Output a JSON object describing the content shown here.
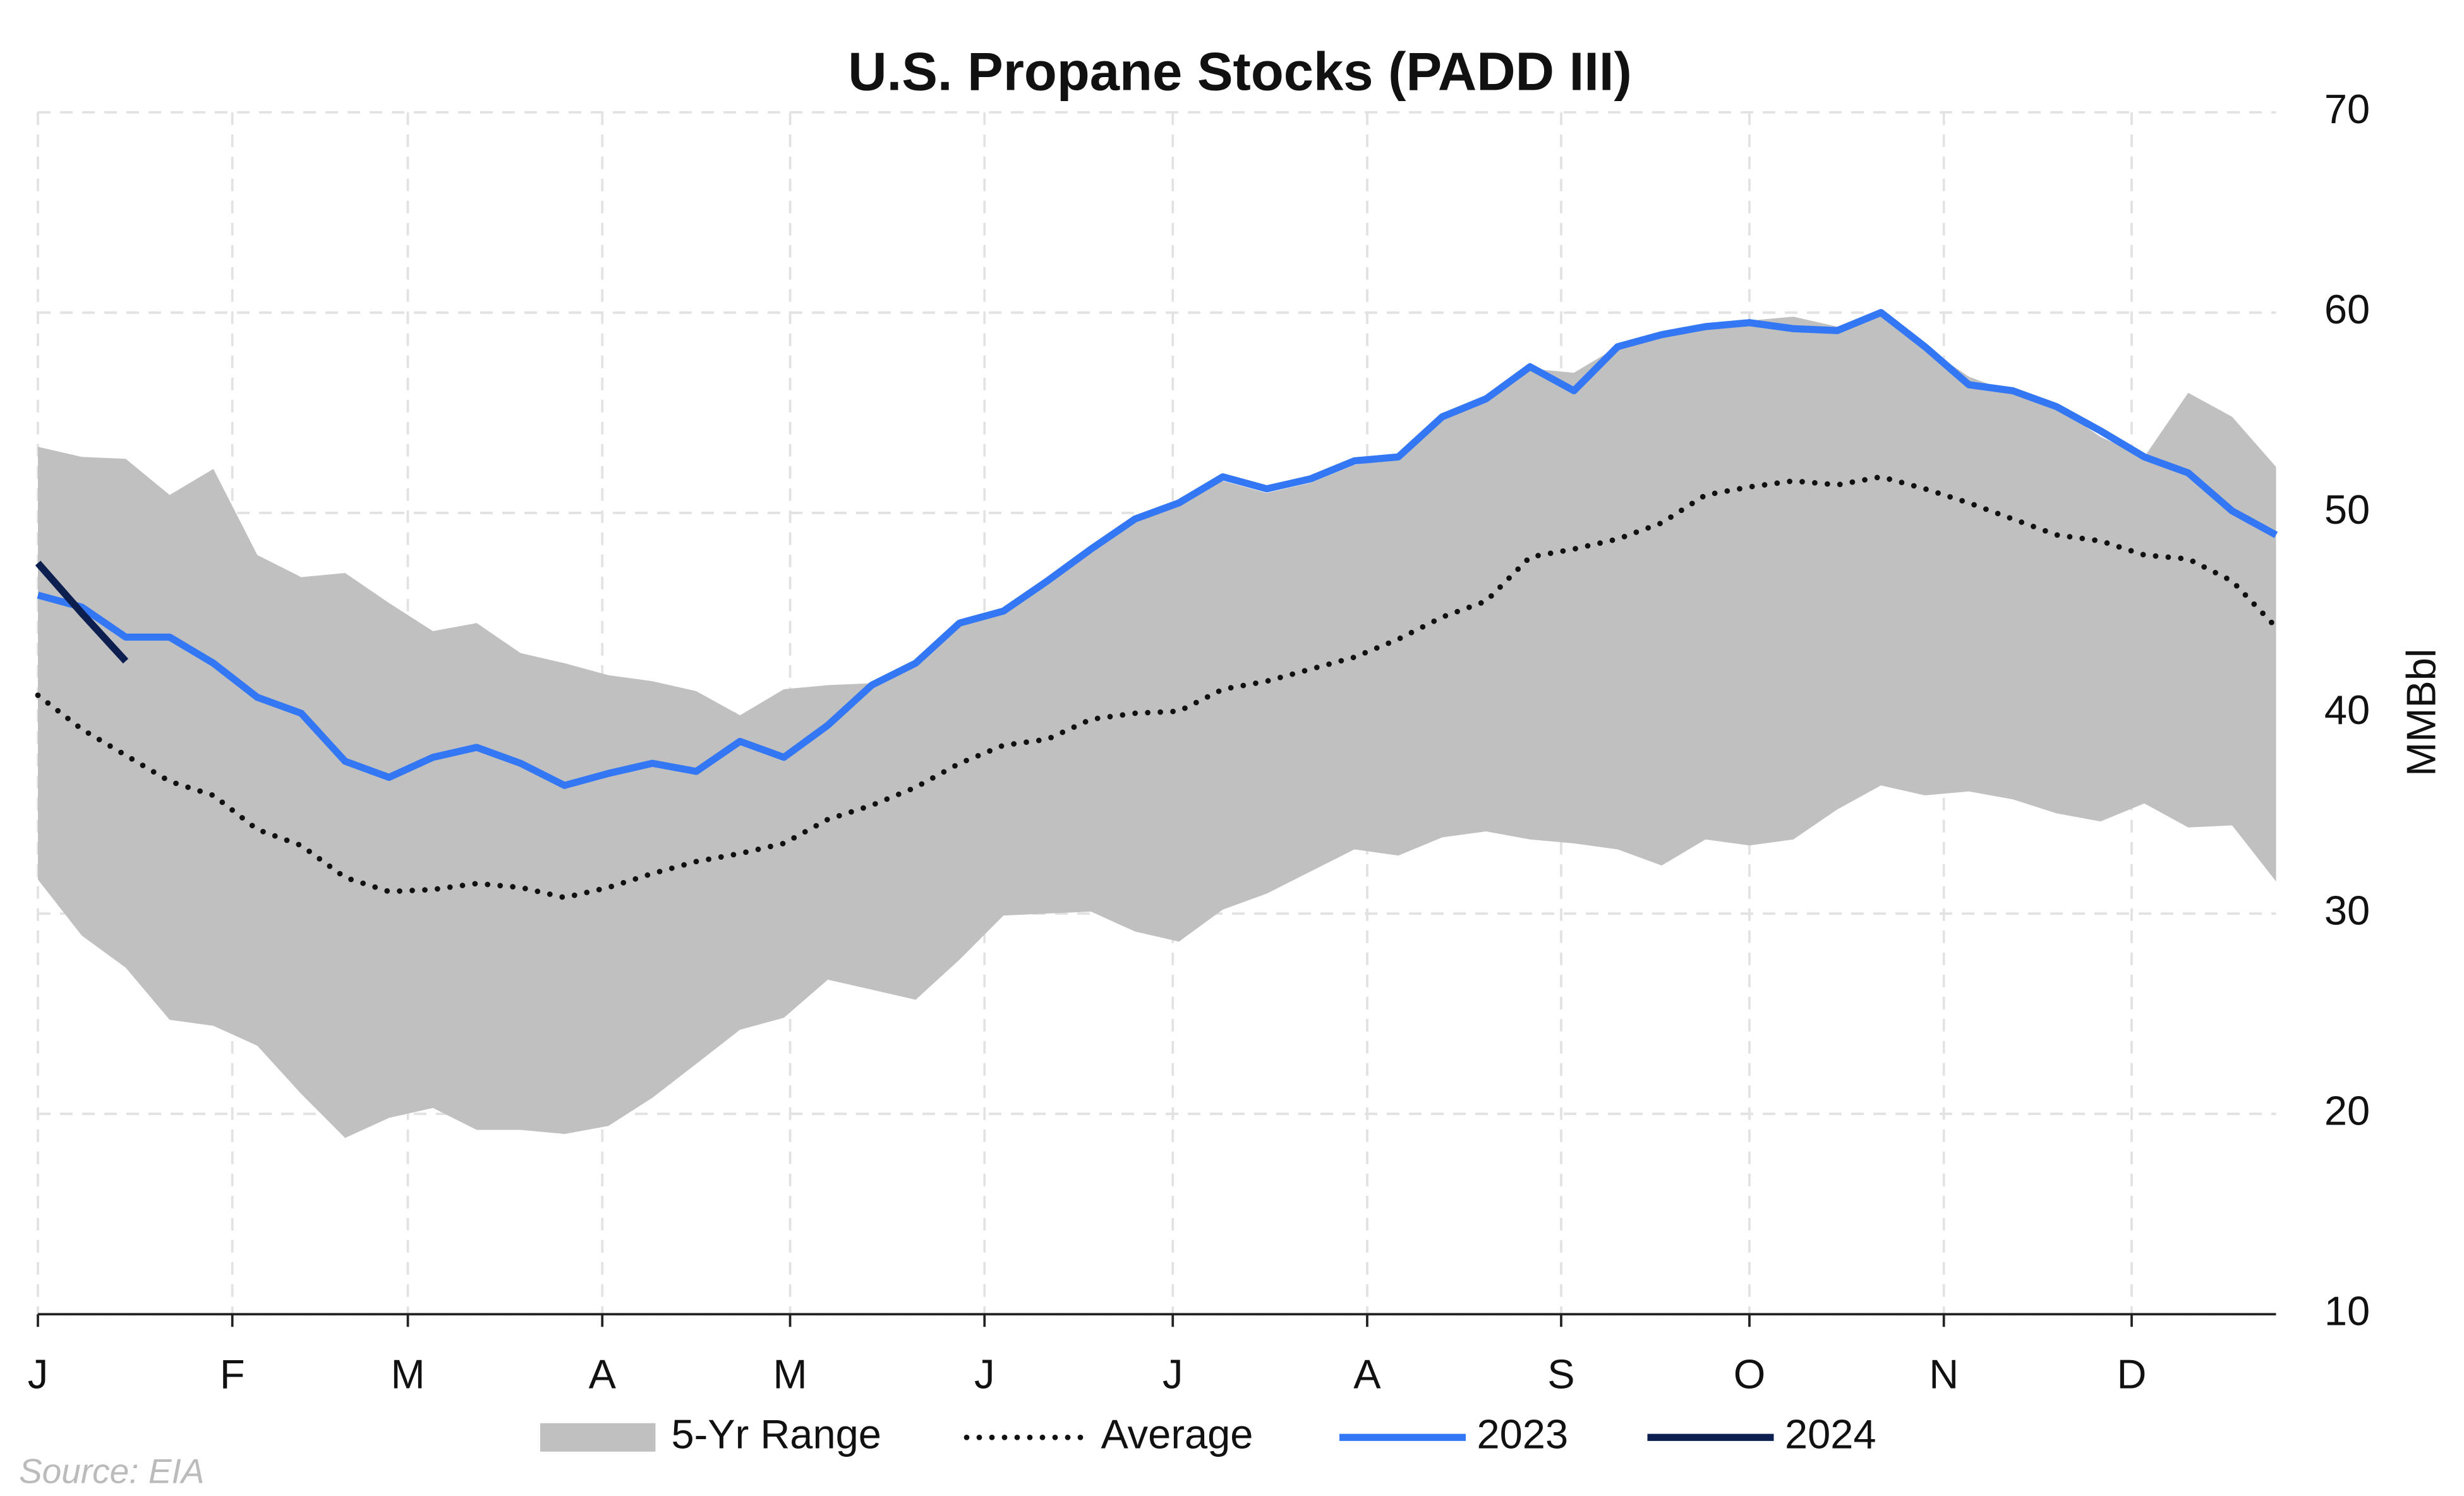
{
  "chart_data": {
    "type": "line",
    "title": "U.S. Propane Stocks (PADD III)",
    "y_label": "MMBbl",
    "source": "Source: EIA",
    "x": [
      0,
      1,
      2,
      3,
      4,
      5,
      6,
      7,
      8,
      9,
      10,
      11,
      12,
      13,
      14,
      15,
      16,
      17,
      18,
      19,
      20,
      21,
      22,
      23,
      24,
      25,
      26,
      27,
      28,
      29,
      30,
      31,
      32,
      33,
      34,
      35,
      36,
      37,
      38,
      39,
      40,
      41,
      42,
      43,
      44,
      45,
      46,
      47,
      48,
      49,
      50,
      51
    ],
    "xlim": [
      0,
      51
    ],
    "xticks": [
      {
        "value": 0,
        "label": "J"
      },
      {
        "value": 4.43,
        "label": "F"
      },
      {
        "value": 8.43,
        "label": "M"
      },
      {
        "value": 12.86,
        "label": "A"
      },
      {
        "value": 17.14,
        "label": "M"
      },
      {
        "value": 21.57,
        "label": "J"
      },
      {
        "value": 25.86,
        "label": "J"
      },
      {
        "value": 30.29,
        "label": "A"
      },
      {
        "value": 34.71,
        "label": "S"
      },
      {
        "value": 39,
        "label": "O"
      },
      {
        "value": 43.43,
        "label": "N"
      },
      {
        "value": 47.71,
        "label": "D"
      }
    ],
    "ylim": [
      10,
      70
    ],
    "yticks": [
      10,
      20,
      30,
      40,
      50,
      60,
      70
    ],
    "grid": true,
    "series": [
      {
        "name": "5-Yr Range",
        "kind": "band",
        "color": "#c0c0c0",
        "upper": [
          53.3,
          52.8,
          52.7,
          50.9,
          52.2,
          47.9,
          46.8,
          47.0,
          45.5,
          44.1,
          44.5,
          43.0,
          42.5,
          41.9,
          41.6,
          41.1,
          39.9,
          41.2,
          41.4,
          41.5,
          42.3,
          44.5,
          45.0,
          46.5,
          48.2,
          49.6,
          50.4,
          51.6,
          51.0,
          51.5,
          52.4,
          52.7,
          54.6,
          55.6,
          57.2,
          57.0,
          58.3,
          58.8,
          59.3,
          59.6,
          59.8,
          59.3,
          59.8,
          58.3,
          56.8,
          56.0,
          55.3,
          53.8,
          52.8,
          56.0,
          54.8,
          52.3
        ],
        "lower": [
          31.7,
          28.9,
          27.3,
          24.7,
          24.4,
          23.4,
          21.0,
          18.8,
          19.8,
          20.3,
          19.2,
          19.2,
          19.0,
          19.4,
          20.8,
          22.5,
          24.2,
          24.8,
          26.7,
          26.2,
          25.7,
          27.7,
          29.9,
          30.0,
          30.1,
          29.1,
          28.6,
          30.2,
          31.0,
          32.1,
          33.2,
          32.9,
          33.8,
          34.1,
          33.7,
          33.5,
          33.2,
          32.4,
          33.7,
          33.4,
          33.7,
          35.2,
          36.4,
          35.9,
          36.1,
          35.7,
          35.0,
          34.6,
          35.5,
          34.3,
          34.4,
          31.6
        ]
      },
      {
        "name": "Average",
        "kind": "dotted",
        "color": "#111111",
        "values": [
          40.9,
          39.2,
          37.9,
          36.6,
          35.9,
          34.2,
          33.4,
          31.8,
          31.1,
          31.2,
          31.5,
          31.3,
          30.8,
          31.3,
          32.0,
          32.6,
          33.0,
          33.5,
          34.7,
          35.4,
          36.3,
          37.5,
          38.4,
          38.7,
          39.7,
          40.0,
          40.1,
          41.2,
          41.6,
          42.2,
          42.8,
          43.7,
          44.8,
          45.6,
          47.8,
          48.2,
          48.7,
          49.5,
          50.9,
          51.3,
          51.6,
          51.4,
          51.8,
          51.2,
          50.5,
          49.7,
          48.9,
          48.6,
          47.9,
          47.7,
          46.6,
          44.3
        ]
      },
      {
        "name": "2023",
        "kind": "line",
        "color": "#3377f5",
        "values": [
          45.9,
          45.3,
          43.8,
          43.8,
          42.5,
          40.8,
          40.0,
          37.6,
          36.8,
          37.8,
          38.3,
          37.5,
          36.4,
          37.0,
          37.5,
          37.1,
          38.6,
          37.8,
          39.4,
          41.4,
          42.5,
          44.5,
          45.1,
          46.6,
          48.2,
          49.7,
          50.5,
          51.8,
          51.2,
          51.7,
          52.6,
          52.8,
          54.8,
          55.7,
          57.3,
          56.1,
          58.3,
          58.9,
          59.3,
          59.5,
          59.2,
          59.1,
          60.0,
          58.3,
          56.4,
          56.1,
          55.3,
          54.1,
          52.8,
          52.0,
          50.1,
          48.9
        ]
      },
      {
        "name": "2024",
        "kind": "line",
        "color": "#0d1f4f",
        "values": [
          47.5,
          45.0,
          42.6,
          null,
          null,
          null,
          null,
          null,
          null,
          null,
          null,
          null,
          null,
          null,
          null,
          null,
          null,
          null,
          null,
          null,
          null,
          null,
          null,
          null,
          null,
          null,
          null,
          null,
          null,
          null,
          null,
          null,
          null,
          null,
          null,
          null,
          null,
          null,
          null,
          null,
          null,
          null,
          null,
          null,
          null,
          null,
          null,
          null,
          null,
          null,
          null,
          null
        ]
      }
    ]
  }
}
